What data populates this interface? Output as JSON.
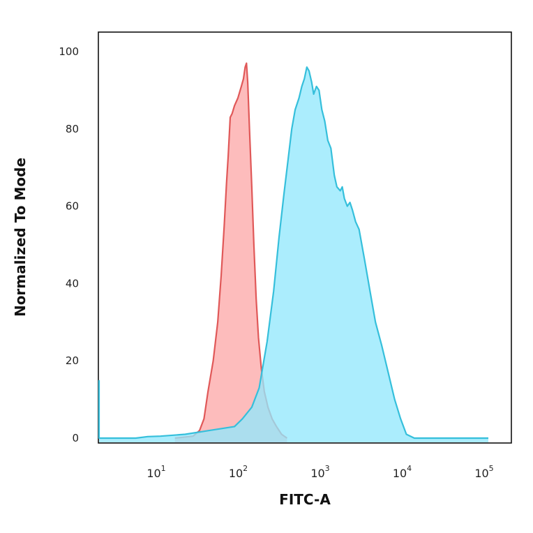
{
  "chart_data": {
    "type": "area",
    "xlabel": "FITC-A",
    "ylabel": "Normalized To Mode",
    "x_scale": "log",
    "xlim": [
      1,
      100000
    ],
    "ylim": [
      0,
      100
    ],
    "y_ticks": [
      {
        "value": 0,
        "label": "0"
      },
      {
        "value": 20,
        "label": "20"
      },
      {
        "value": 40,
        "label": "40"
      },
      {
        "value": 60,
        "label": "60"
      },
      {
        "value": 80,
        "label": "80"
      },
      {
        "value": 100,
        "label": "100"
      }
    ],
    "x_ticks": [
      {
        "value": 10,
        "base": "10",
        "exp": "1"
      },
      {
        "value": 100,
        "base": "10",
        "exp": "2"
      },
      {
        "value": 1000,
        "base": "10",
        "exp": "3"
      },
      {
        "value": 10000,
        "base": "10",
        "exp": "4"
      },
      {
        "value": 100000,
        "base": "10",
        "exp": "5"
      }
    ],
    "grid": false,
    "legend": "none",
    "series": [
      {
        "color": "#e05858",
        "fill": "#fca9a9",
        "points": [
          [
            15,
            0
          ],
          [
            25,
            0.5
          ],
          [
            30,
            2
          ],
          [
            34,
            5
          ],
          [
            38,
            12
          ],
          [
            44,
            20
          ],
          [
            50,
            30
          ],
          [
            55,
            42
          ],
          [
            60,
            55
          ],
          [
            64,
            66
          ],
          [
            67,
            73
          ],
          [
            71,
            83
          ],
          [
            75,
            84
          ],
          [
            80,
            86
          ],
          [
            88,
            88
          ],
          [
            97,
            91
          ],
          [
            103,
            93
          ],
          [
            108,
            96
          ],
          [
            112,
            97
          ],
          [
            116,
            92
          ],
          [
            122,
            80
          ],
          [
            130,
            65
          ],
          [
            138,
            50
          ],
          [
            147,
            36
          ],
          [
            157,
            26
          ],
          [
            170,
            18
          ],
          [
            185,
            12
          ],
          [
            205,
            8
          ],
          [
            230,
            5
          ],
          [
            260,
            3
          ],
          [
            300,
            1
          ],
          [
            350,
            0
          ]
        ]
      },
      {
        "color": "#35bfdb",
        "fill": "#93e8fc",
        "points": [
          [
            1,
            15
          ],
          [
            1.1,
            10
          ],
          [
            1.2,
            3
          ],
          [
            1.35,
            0
          ],
          [
            5,
            0
          ],
          [
            7,
            0.4
          ],
          [
            10,
            0.5
          ],
          [
            20,
            1
          ],
          [
            40,
            2
          ],
          [
            80,
            3
          ],
          [
            100,
            5
          ],
          [
            130,
            8
          ],
          [
            160,
            13
          ],
          [
            200,
            25
          ],
          [
            240,
            38
          ],
          [
            280,
            52
          ],
          [
            320,
            63
          ],
          [
            360,
            72
          ],
          [
            400,
            80
          ],
          [
            440,
            85
          ],
          [
            490,
            88
          ],
          [
            530,
            91
          ],
          [
            570,
            93
          ],
          [
            610,
            96
          ],
          [
            650,
            95
          ],
          [
            700,
            92
          ],
          [
            740,
            89
          ],
          [
            800,
            91
          ],
          [
            860,
            90
          ],
          [
            930,
            85
          ],
          [
            1010,
            82
          ],
          [
            1100,
            77
          ],
          [
            1200,
            75
          ],
          [
            1320,
            68
          ],
          [
            1420,
            65
          ],
          [
            1560,
            64
          ],
          [
            1650,
            65
          ],
          [
            1750,
            62
          ],
          [
            1900,
            60
          ],
          [
            2050,
            61
          ],
          [
            2200,
            59
          ],
          [
            2400,
            56
          ],
          [
            2650,
            54
          ],
          [
            3100,
            46
          ],
          [
            3600,
            38
          ],
          [
            4200,
            30
          ],
          [
            5000,
            24
          ],
          [
            6000,
            17
          ],
          [
            7200,
            10
          ],
          [
            8500,
            5
          ],
          [
            10000,
            1
          ],
          [
            12500,
            0
          ],
          [
            100000,
            0
          ]
        ]
      }
    ]
  }
}
